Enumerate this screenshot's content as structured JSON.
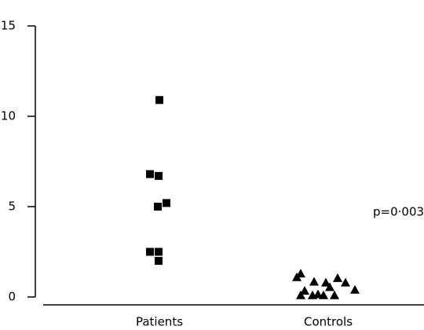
{
  "chart_data": {
    "type": "strip",
    "categories": [
      "Patients",
      "Controls"
    ],
    "markers": [
      "square",
      "triangle"
    ],
    "color": "#000000",
    "values": [
      [
        10.9,
        6.8,
        6.7,
        5.2,
        5.0,
        2.5,
        2.5,
        2.0
      ],
      [
        1.3,
        1.1,
        1.05,
        0.85,
        0.8,
        0.8,
        0.55,
        0.4,
        0.35,
        0.15,
        0.1,
        0.1,
        0.1,
        0.1
      ]
    ],
    "ylim": [
      0,
      15
    ],
    "yticks": [
      0,
      5,
      10,
      15
    ],
    "annotation": "p=0·003"
  }
}
